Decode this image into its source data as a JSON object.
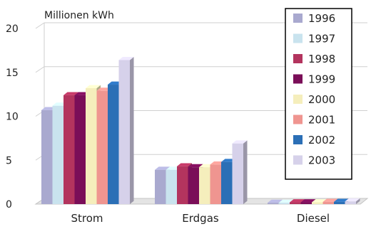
{
  "chart_data": {
    "type": "bar",
    "title": "",
    "ylabel": "Millionen kWh",
    "xlabel": "",
    "ylim": [
      0,
      20
    ],
    "yticks": [
      "0",
      "5",
      "10",
      "15",
      "20"
    ],
    "categories": [
      "Strom",
      "Erdgas",
      "Diesel"
    ],
    "grid": true,
    "legend_position": "top-right",
    "series": [
      {
        "name": "1996",
        "color": "#a9a9cf",
        "values": [
          10.7,
          3.9,
          0.15
        ]
      },
      {
        "name": "1997",
        "color": "#c9e3ee",
        "values": [
          11.2,
          3.9,
          0.15
        ]
      },
      {
        "name": "1998",
        "color": "#b3345e",
        "values": [
          12.4,
          4.3,
          0.2
        ]
      },
      {
        "name": "1999",
        "color": "#7a0e58",
        "values": [
          12.4,
          4.2,
          0.2
        ]
      },
      {
        "name": "2000",
        "color": "#f5eebc",
        "values": [
          13.2,
          4.2,
          0.2
        ]
      },
      {
        "name": "2001",
        "color": "#ef9590",
        "values": [
          12.9,
          4.5,
          0.25
        ]
      },
      {
        "name": "2002",
        "color": "#2b6fb6",
        "values": [
          13.6,
          4.8,
          0.25
        ]
      },
      {
        "name": "2003",
        "color": "#d6d1ea",
        "values": [
          16.4,
          6.9,
          0.3
        ]
      }
    ]
  }
}
